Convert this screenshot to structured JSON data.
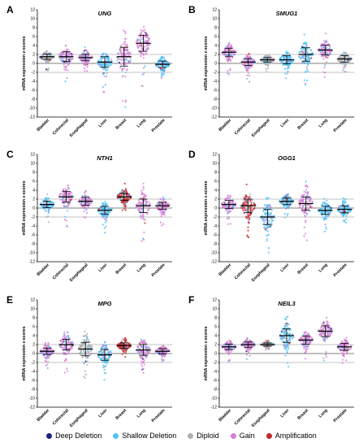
{
  "legend": [
    {
      "label": "Deep Deletion",
      "color": "#1a237e"
    },
    {
      "label": "Shallow Deletion",
      "color": "#4fc3f7"
    },
    {
      "label": "Diploid",
      "color": "#b0b0b0"
    },
    {
      "label": "Gain",
      "color": "#d77fd4"
    },
    {
      "label": "Amplification",
      "color": "#c62828"
    }
  ],
  "chart_data": [
    {
      "type": "scatter",
      "panel": "A",
      "title": "UNG",
      "ylabel": "mRNA expression z-scores",
      "ylim": [
        -12,
        12
      ],
      "yticks": [
        -12,
        -10,
        -8,
        -6,
        -4,
        -2,
        0,
        2,
        4,
        6,
        8,
        10,
        12
      ],
      "reference_lines": [
        -2,
        0,
        2
      ],
      "categories": [
        "Bladder",
        "Colorectal",
        "Esophageal",
        "Liver",
        "Breast",
        "Lung",
        "Prostate"
      ],
      "medians": [
        1.5,
        1.5,
        1.3,
        0.3,
        1.5,
        4.5,
        -0.2
      ],
      "spread": [
        1.0,
        1.8,
        1.2,
        2.0,
        3.5,
        3.0,
        1.2
      ],
      "dominant_status": [
        "Diploid",
        "Gain",
        "Gain",
        "Shallow Deletion",
        "Gain",
        "Gain",
        "Shallow Deletion"
      ]
    },
    {
      "type": "scatter",
      "panel": "B",
      "title": "SMUG1",
      "ylabel": "mRNA expression z-scores",
      "ylim": [
        -12,
        12
      ],
      "yticks": [
        -12,
        -10,
        -8,
        -6,
        -4,
        -2,
        0,
        2,
        4,
        6,
        8,
        10,
        12
      ],
      "reference_lines": [
        -2,
        0,
        2
      ],
      "categories": [
        "Bladder",
        "Colorectal",
        "Esophageal",
        "Liver",
        "Breast",
        "Lung",
        "Prostate"
      ],
      "medians": [
        2.5,
        0.3,
        0.8,
        0.8,
        2.0,
        3.0,
        1.0
      ],
      "spread": [
        1.5,
        1.3,
        0.8,
        1.5,
        2.5,
        1.8,
        1.2
      ],
      "dominant_status": [
        "Gain",
        "Gain",
        "Diploid",
        "Shallow Deletion",
        "Shallow Deletion",
        "Gain",
        "Diploid"
      ]
    },
    {
      "type": "scatter",
      "panel": "C",
      "title": "NTH1",
      "ylabel": "mRNA expression z-scores",
      "ylim": [
        -12,
        12
      ],
      "yticks": [
        -12,
        -10,
        -8,
        -6,
        -4,
        -2,
        0,
        2,
        4,
        6,
        8,
        10,
        12
      ],
      "reference_lines": [
        -2,
        0,
        2
      ],
      "categories": [
        "Bladder",
        "Colorectal",
        "Esophageal",
        "Liver",
        "Breast",
        "Lung",
        "Prostate"
      ],
      "medians": [
        0.8,
        2.5,
        1.5,
        -0.5,
        2.5,
        0.5,
        0.5
      ],
      "spread": [
        1.2,
        2.0,
        1.5,
        1.5,
        1.3,
        2.5,
        1.3
      ],
      "dominant_status": [
        "Shallow Deletion",
        "Gain",
        "Gain",
        "Shallow Deletion",
        "Amplification",
        "Gain",
        "Gain"
      ]
    },
    {
      "type": "scatter",
      "panel": "D",
      "title": "OGG1",
      "ylabel": "mRNA expression z-scores",
      "ylim": [
        -12,
        12
      ],
      "yticks": [
        -12,
        -10,
        -8,
        -6,
        -4,
        -2,
        0,
        2,
        4,
        6,
        8,
        10,
        12
      ],
      "reference_lines": [
        -2,
        0,
        2
      ],
      "categories": [
        "Bladder",
        "Colorectal",
        "Esophageal",
        "Liver",
        "Breast",
        "Lung",
        "Prostate"
      ],
      "medians": [
        0.8,
        0.5,
        -2.0,
        1.5,
        1.0,
        -0.5,
        -0.3
      ],
      "spread": [
        1.5,
        2.5,
        2.8,
        1.2,
        2.5,
        1.5,
        1.3
      ],
      "dominant_status": [
        "Gain",
        "Amplification",
        "Shallow Deletion",
        "Shallow Deletion",
        "Gain",
        "Shallow Deletion",
        "Shallow Deletion"
      ]
    },
    {
      "type": "scatter",
      "panel": "E",
      "title": "MPG",
      "ylabel": "mRNA expression z-scores",
      "ylim": [
        -12,
        12
      ],
      "yticks": [
        -12,
        -10,
        -8,
        -6,
        -4,
        -2,
        0,
        2,
        4,
        6,
        8,
        10,
        12
      ],
      "reference_lines": [
        -2,
        0,
        2
      ],
      "categories": [
        "Bladder",
        "Colorectal",
        "Esophageal",
        "Liver",
        "Breast",
        "Lung",
        "Prostate"
      ],
      "medians": [
        0.5,
        2.0,
        1.0,
        -0.3,
        1.8,
        0.8,
        0.5
      ],
      "spread": [
        1.2,
        2.0,
        2.5,
        2.0,
        1.0,
        2.0,
        1.0
      ],
      "dominant_status": [
        "Gain",
        "Gain",
        "Diploid",
        "Shallow Deletion",
        "Amplification",
        "Gain",
        "Gain"
      ]
    },
    {
      "type": "scatter",
      "panel": "F",
      "title": "NEIL3",
      "ylabel": "mRNA expression z-scores",
      "ylim": [
        -12,
        12
      ],
      "yticks": [
        -12,
        -10,
        -8,
        -6,
        -4,
        -2,
        0,
        2,
        4,
        6,
        8,
        10,
        12
      ],
      "reference_lines": [
        -2,
        0,
        2
      ],
      "categories": [
        "Bladder",
        "Colorectal",
        "Esophageal",
        "Liver",
        "Breast",
        "Lung",
        "Prostate"
      ],
      "medians": [
        1.5,
        2.0,
        2.0,
        4.0,
        3.0,
        5.0,
        1.5
      ],
      "spread": [
        1.0,
        1.0,
        0.6,
        2.5,
        1.5,
        2.0,
        1.3
      ],
      "dominant_status": [
        "Gain",
        "Gain",
        "Diploid",
        "Shallow Deletion",
        "Gain",
        "Gain",
        "Gain"
      ]
    }
  ]
}
